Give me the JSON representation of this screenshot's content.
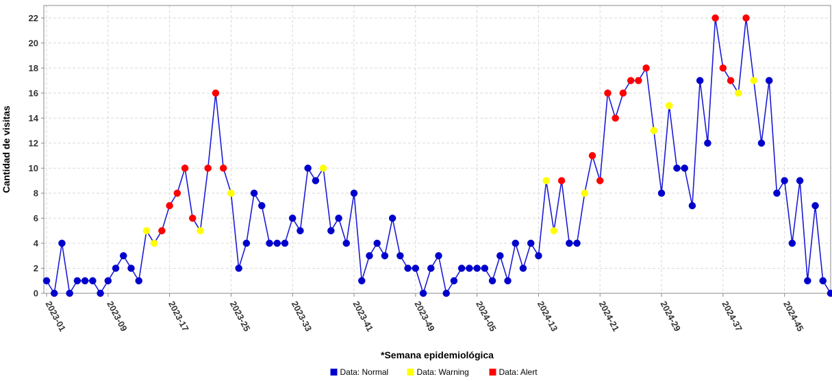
{
  "chart_data": {
    "type": "line",
    "xlabel": "*Semana epidemiológica",
    "ylabel": "Cantidad de visitas",
    "ylim": [
      0,
      23
    ],
    "yticks": [
      0,
      2,
      4,
      6,
      8,
      10,
      12,
      14,
      16,
      18,
      20,
      22
    ],
    "xtick_labels": [
      "2023-01",
      "2023-09",
      "2023-17",
      "2023-25",
      "2023-33",
      "2023-41",
      "2023-49",
      "2024-05",
      "2024-13",
      "2024-21",
      "2024-29",
      "2024-37",
      "2024-45"
    ],
    "xtick_every": 8,
    "grid": true,
    "legend_position": "bottom-center",
    "line_color": "#1a1ad6",
    "status_colors": {
      "normal": "#0000cc",
      "warning": "#ffff00",
      "alert": "#ff0000"
    },
    "legend": [
      {
        "label": "Data: Normal",
        "status": "normal"
      },
      {
        "label": "Data: Warning",
        "status": "warning"
      },
      {
        "label": "Data: Alert",
        "status": "alert"
      }
    ],
    "values": [
      1,
      0,
      4,
      0,
      1,
      1,
      1,
      0,
      1,
      2,
      3,
      2,
      1,
      5,
      4,
      5,
      7,
      8,
      10,
      6,
      5,
      10,
      16,
      10,
      8,
      2,
      4,
      8,
      7,
      4,
      4,
      4,
      6,
      5,
      10,
      9,
      10,
      5,
      6,
      4,
      8,
      1,
      3,
      4,
      3,
      6,
      3,
      2,
      2,
      0,
      2,
      3,
      0,
      1,
      2,
      2,
      2,
      2,
      1,
      3,
      1,
      4,
      2,
      4,
      3,
      9,
      5,
      9,
      4,
      4,
      8,
      11,
      9,
      16,
      14,
      16,
      17,
      17,
      18,
      13,
      8,
      15,
      10,
      10,
      7,
      17,
      12,
      22,
      18,
      17,
      16,
      22,
      17,
      12,
      17,
      8,
      9,
      4,
      9,
      1,
      7,
      1,
      0
    ],
    "status": [
      "normal",
      "normal",
      "normal",
      "normal",
      "normal",
      "normal",
      "normal",
      "normal",
      "normal",
      "normal",
      "normal",
      "normal",
      "normal",
      "warning",
      "warning",
      "alert",
      "alert",
      "alert",
      "alert",
      "alert",
      "warning",
      "alert",
      "alert",
      "alert",
      "warning",
      "normal",
      "normal",
      "normal",
      "normal",
      "normal",
      "normal",
      "normal",
      "normal",
      "normal",
      "normal",
      "normal",
      "warning",
      "normal",
      "normal",
      "normal",
      "normal",
      "normal",
      "normal",
      "normal",
      "normal",
      "normal",
      "normal",
      "normal",
      "normal",
      "normal",
      "normal",
      "normal",
      "normal",
      "normal",
      "normal",
      "normal",
      "normal",
      "normal",
      "normal",
      "normal",
      "normal",
      "normal",
      "normal",
      "normal",
      "normal",
      "warning",
      "warning",
      "alert",
      "normal",
      "normal",
      "warning",
      "alert",
      "alert",
      "alert",
      "alert",
      "alert",
      "alert",
      "alert",
      "alert",
      "warning",
      "normal",
      "warning",
      "normal",
      "normal",
      "normal",
      "normal",
      "normal",
      "alert",
      "alert",
      "alert",
      "warning",
      "alert",
      "warning",
      "normal",
      "normal",
      "normal",
      "normal",
      "normal",
      "normal",
      "normal",
      "normal",
      "normal",
      "normal"
    ]
  }
}
